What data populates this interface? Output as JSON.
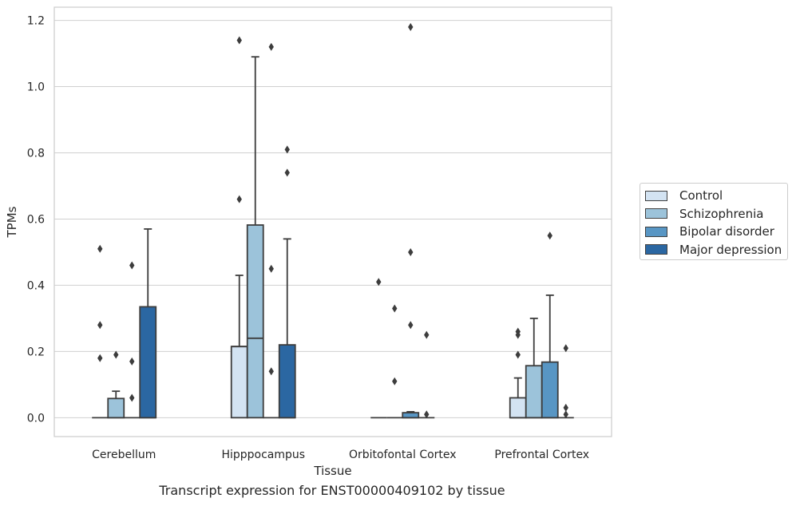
{
  "chart_data": {
    "type": "box",
    "title": "Transcript expression for ENST00000409102 by tissue",
    "xlabel": "Tissue",
    "ylabel": "TPMs",
    "ylim": [
      -0.057,
      1.24
    ],
    "yticks": [
      0.0,
      0.2,
      0.4,
      0.6,
      0.8,
      1.0,
      1.2
    ],
    "ytick_labels": [
      "0.0",
      "0.2",
      "0.4",
      "0.6",
      "0.8",
      "1.0",
      "1.2"
    ],
    "categories": [
      "Cerebellum",
      "Hipppocampus",
      "Orbitofontal Cortex",
      "Prefrontal Cortex"
    ],
    "grid": "horizontal",
    "legend_position": "right",
    "series": [
      {
        "name": "Control",
        "color": "#d3e3f2",
        "boxes": [
          {
            "q1": 0.0,
            "median": 0.0,
            "q3": 0.0,
            "whisker_low": 0.0,
            "whisker_high": 0.0,
            "outliers": [
              0.51,
              0.28,
              0.18
            ]
          },
          {
            "q1": 0.0,
            "median": 0.215,
            "q3": 0.215,
            "whisker_low": 0.0,
            "whisker_high": 0.43,
            "outliers": [
              1.14,
              0.66
            ]
          },
          {
            "q1": 0.0,
            "median": 0.0,
            "q3": 0.0,
            "whisker_low": 0.0,
            "whisker_high": 0.0,
            "outliers": [
              0.41
            ]
          },
          {
            "q1": 0.0,
            "median": 0.0,
            "q3": 0.06,
            "whisker_low": 0.0,
            "whisker_high": 0.12,
            "outliers": [
              0.26,
              0.25,
              0.19
            ]
          }
        ]
      },
      {
        "name": "Schizophrenia",
        "color": "#9cc3da",
        "boxes": [
          {
            "q1": 0.0,
            "median": 0.0,
            "q3": 0.058,
            "whisker_low": 0.0,
            "whisker_high": 0.08,
            "outliers": [
              0.19
            ]
          },
          {
            "q1": 0.0,
            "median": 0.24,
            "q3": 0.582,
            "whisker_low": 0.0,
            "whisker_high": 1.09,
            "outliers": []
          },
          {
            "q1": 0.0,
            "median": 0.0,
            "q3": 0.0,
            "whisker_low": 0.0,
            "whisker_high": 0.0,
            "outliers": [
              0.33,
              0.11
            ]
          },
          {
            "q1": 0.0,
            "median": 0.0,
            "q3": 0.157,
            "whisker_low": 0.0,
            "whisker_high": 0.3,
            "outliers": []
          }
        ]
      },
      {
        "name": "Bipolar disorder",
        "color": "#5896c4",
        "boxes": [
          {
            "q1": 0.0,
            "median": 0.0,
            "q3": 0.0,
            "whisker_low": 0.0,
            "whisker_high": 0.0,
            "outliers": [
              0.46,
              0.17,
              0.06
            ]
          },
          {
            "q1": 0.0,
            "median": 0.0,
            "q3": 0.0,
            "whisker_low": 0.0,
            "whisker_high": 0.0,
            "outliers": [
              1.12,
              0.45,
              0.14
            ]
          },
          {
            "q1": 0.0,
            "median": 0.0,
            "q3": 0.015,
            "whisker_low": 0.0,
            "whisker_high": 0.018,
            "outliers": [
              1.18,
              0.5,
              0.28
            ]
          },
          {
            "q1": 0.0,
            "median": 0.0,
            "q3": 0.168,
            "whisker_low": 0.0,
            "whisker_high": 0.37,
            "outliers": [
              0.55
            ]
          }
        ]
      },
      {
        "name": "Major depression",
        "color": "#2b67a2",
        "boxes": [
          {
            "q1": 0.0,
            "median": 0.0,
            "q3": 0.335,
            "whisker_low": 0.0,
            "whisker_high": 0.57,
            "outliers": []
          },
          {
            "q1": 0.0,
            "median": 0.0,
            "q3": 0.22,
            "whisker_low": 0.0,
            "whisker_high": 0.54,
            "outliers": [
              0.81,
              0.74
            ]
          },
          {
            "q1": 0.0,
            "median": 0.0,
            "q3": 0.0,
            "whisker_low": 0.0,
            "whisker_high": 0.0,
            "outliers": [
              0.25,
              0.01
            ]
          },
          {
            "q1": 0.0,
            "median": 0.0,
            "q3": 0.0,
            "whisker_low": 0.0,
            "whisker_high": 0.0,
            "outliers": [
              0.21,
              0.03,
              0.01
            ]
          }
        ]
      }
    ]
  }
}
